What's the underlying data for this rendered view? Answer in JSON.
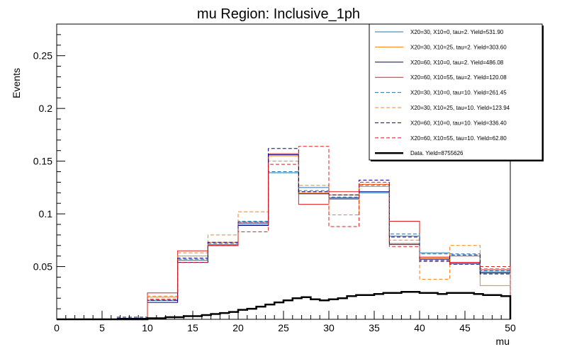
{
  "chart_data": {
    "type": "line",
    "title": "mu Region: Inclusive_1ph",
    "xlabel": "mu",
    "ylabel": "Events",
    "xlim": [
      0,
      50
    ],
    "ylim": [
      0,
      0.28
    ],
    "x_ticks": [
      0,
      5,
      10,
      15,
      20,
      25,
      30,
      35,
      40,
      45,
      50
    ],
    "y_ticks": [
      0.05,
      0.1,
      0.15,
      0.2,
      0.25
    ],
    "y_tick_labels": [
      "0.05",
      "0.1",
      "0.15",
      "0.2",
      "0.25"
    ],
    "grid": false,
    "legend_position": "top-right",
    "bin_edges": [
      0,
      3.33,
      6.67,
      10,
      13.33,
      16.67,
      20,
      23.33,
      26.67,
      30,
      33.33,
      36.67,
      40,
      43.33,
      46.67,
      50
    ],
    "series": [
      {
        "name": "X20=30, X10=0, tau=2. Yield=531.90",
        "color": "#1f77b4",
        "style": "solid",
        "values": [
          0,
          0,
          0.001,
          0.018,
          0.056,
          0.071,
          0.09,
          0.139,
          0.125,
          0.114,
          0.12,
          0.079,
          0.063,
          0.06,
          0.045
        ]
      },
      {
        "name": "X20=30, X10=25, tau=2. Yield=303.60",
        "color": "#ff7f0e",
        "style": "solid",
        "values": [
          0,
          0,
          0,
          0.021,
          0.06,
          0.073,
          0.091,
          0.155,
          0.12,
          0.118,
          0.126,
          0.072,
          0.058,
          0.06,
          0.032
        ]
      },
      {
        "name": "X20=60, X10=0, tau=2. Yield=486.08",
        "color": "#000080",
        "style": "solid",
        "values": [
          0,
          0,
          0.001,
          0.016,
          0.054,
          0.07,
          0.089,
          0.156,
          0.119,
          0.115,
          0.121,
          0.071,
          0.057,
          0.053,
          0.044
        ]
      },
      {
        "name": "X20=60, X10=55, tau=2. Yield=120.08",
        "color": "#e31a1c",
        "style": "solid",
        "values": [
          0,
          0,
          0,
          0.025,
          0.065,
          0.07,
          0.092,
          0.157,
          0.109,
          0.121,
          0.128,
          0.093,
          0.059,
          0.054,
          0.047
        ]
      },
      {
        "name": "X20=30, X10=0, tau=10. Yield=261.45",
        "color": "#1f77b4",
        "style": "dashed",
        "values": [
          0,
          0,
          0,
          0.019,
          0.057,
          0.072,
          0.093,
          0.14,
          0.122,
          0.116,
          0.127,
          0.081,
          0.062,
          0.062,
          0.046
        ]
      },
      {
        "name": "X20=30, X10=25, tau=10. Yield=123.94",
        "color": "#ff7f0e",
        "style": "dashed",
        "values": [
          0,
          0,
          0,
          0.022,
          0.063,
          0.08,
          0.102,
          0.15,
          0.127,
          0.099,
          0.128,
          0.075,
          0.038,
          0.07,
          0.048
        ]
      },
      {
        "name": "X20=60, X10=0, tau=10. Yield=336.40",
        "color": "#000080",
        "style": "dashed",
        "values": [
          0,
          0,
          0.002,
          0.018,
          0.058,
          0.073,
          0.092,
          0.162,
          0.121,
          0.118,
          0.132,
          0.078,
          0.055,
          0.061,
          0.043
        ]
      },
      {
        "name": "X20=60, X10=55, tau=10. Yield=62.80",
        "color": "#e31a1c",
        "style": "dashed",
        "values": [
          0,
          0,
          0,
          0.019,
          0.054,
          0.07,
          0.083,
          0.147,
          0.164,
          0.088,
          0.13,
          0.069,
          0.056,
          0.052,
          0.05
        ]
      }
    ],
    "data_series": {
      "name": "Data. Yield=8755626",
      "color": "#000000",
      "bin_edges": [
        0,
        1,
        2,
        3,
        4,
        5,
        6,
        7,
        8,
        9,
        10,
        11,
        12,
        13,
        14,
        15,
        16,
        17,
        18,
        19,
        20,
        21,
        22,
        23,
        24,
        25,
        26,
        27,
        28,
        29,
        30,
        31,
        32,
        33,
        34,
        35,
        36,
        37,
        38,
        39,
        40,
        41,
        42,
        43,
        44,
        45,
        46,
        47,
        48,
        49,
        50
      ],
      "values": [
        0,
        0,
        0,
        0,
        0,
        0,
        0,
        0,
        0,
        0,
        0.001,
        0.001,
        0.002,
        0.002,
        0.003,
        0.003,
        0.004,
        0.005,
        0.006,
        0.007,
        0.009,
        0.01,
        0.012,
        0.014,
        0.016,
        0.018,
        0.02,
        0.021,
        0.019,
        0.018,
        0.019,
        0.02,
        0.022,
        0.023,
        0.023,
        0.024,
        0.025,
        0.025,
        0.026,
        0.026,
        0.025,
        0.025,
        0.024,
        0.025,
        0.025,
        0.025,
        0.024,
        0.023,
        0.023,
        0.022
      ]
    }
  }
}
